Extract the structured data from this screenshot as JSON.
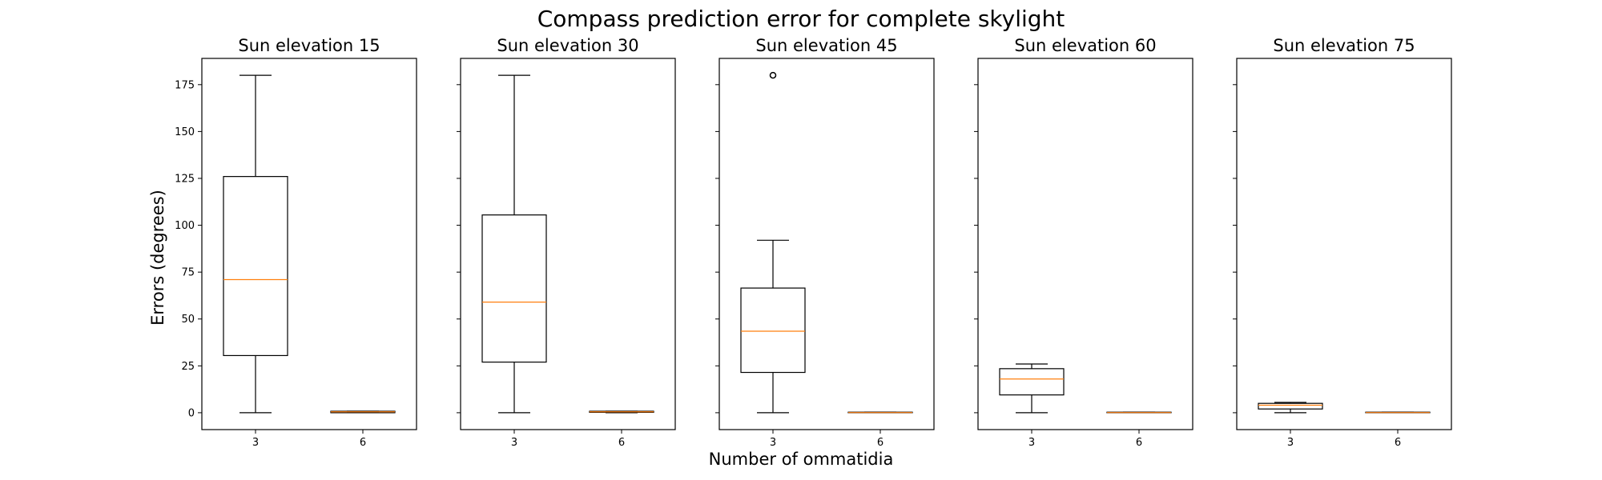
{
  "figure": {
    "title": "Compass prediction error for complete skylight",
    "xlabel": "Number of ommatidia",
    "ylabel": "Errors (degrees)"
  },
  "colors": {
    "box": "#000000",
    "median": "#ff7f0e",
    "background": "#ffffff"
  },
  "chart_data": [
    {
      "type": "box",
      "title": "Sun elevation 15",
      "categories": [
        "3",
        "6"
      ],
      "yticks": [
        0,
        25,
        50,
        75,
        100,
        125,
        150,
        175
      ],
      "ylim": [
        -9,
        189
      ],
      "boxes": [
        {
          "label": "3",
          "whislo": 0,
          "q1": 30.5,
          "med": 71,
          "q3": 126,
          "whishi": 180,
          "fliers": []
        },
        {
          "label": "6",
          "whislo": 0,
          "q1": 0,
          "med": 0.5,
          "q3": 0.8,
          "whishi": 0.8,
          "fliers": []
        }
      ]
    },
    {
      "type": "box",
      "title": "Sun elevation 30",
      "categories": [
        "3",
        "6"
      ],
      "yticks": [
        0,
        25,
        50,
        75,
        100,
        125,
        150,
        175
      ],
      "ylim": [
        -9,
        189
      ],
      "boxes": [
        {
          "label": "3",
          "whislo": 0,
          "q1": 27,
          "med": 59,
          "q3": 105.5,
          "whishi": 180,
          "fliers": []
        },
        {
          "label": "6",
          "whislo": 0,
          "q1": 0.2,
          "med": 0.5,
          "q3": 0.8,
          "whishi": 0.8,
          "fliers": []
        }
      ]
    },
    {
      "type": "box",
      "title": "Sun elevation 45",
      "categories": [
        "3",
        "6"
      ],
      "yticks": [
        0,
        25,
        50,
        75,
        100,
        125,
        150,
        175
      ],
      "ylim": [
        -9,
        189
      ],
      "boxes": [
        {
          "label": "3",
          "whislo": 0,
          "q1": 21.5,
          "med": 43.5,
          "q3": 66.5,
          "whishi": 92,
          "fliers": [
            180
          ]
        },
        {
          "label": "6",
          "whislo": 0,
          "q1": 0,
          "med": 0.1,
          "q3": 0.3,
          "whishi": 0.3,
          "fliers": []
        }
      ]
    },
    {
      "type": "box",
      "title": "Sun elevation 60",
      "categories": [
        "3",
        "6"
      ],
      "yticks": [
        0,
        25,
        50,
        75,
        100,
        125,
        150,
        175
      ],
      "ylim": [
        -9,
        189
      ],
      "boxes": [
        {
          "label": "3",
          "whislo": 0,
          "q1": 9.5,
          "med": 18,
          "q3": 23.5,
          "whishi": 26,
          "fliers": []
        },
        {
          "label": "6",
          "whislo": 0,
          "q1": 0,
          "med": 0.1,
          "q3": 0.3,
          "whishi": 0.3,
          "fliers": []
        }
      ]
    },
    {
      "type": "box",
      "title": "Sun elevation 75",
      "categories": [
        "3",
        "6"
      ],
      "yticks": [
        0,
        25,
        50,
        75,
        100,
        125,
        150,
        175
      ],
      "ylim": [
        -9,
        189
      ],
      "boxes": [
        {
          "label": "3",
          "whislo": 0,
          "q1": 2,
          "med": 4,
          "q3": 5,
          "whishi": 5.5,
          "fliers": []
        },
        {
          "label": "6",
          "whislo": 0,
          "q1": 0,
          "med": 0.1,
          "q3": 0.3,
          "whishi": 0.3,
          "fliers": []
        }
      ]
    }
  ]
}
